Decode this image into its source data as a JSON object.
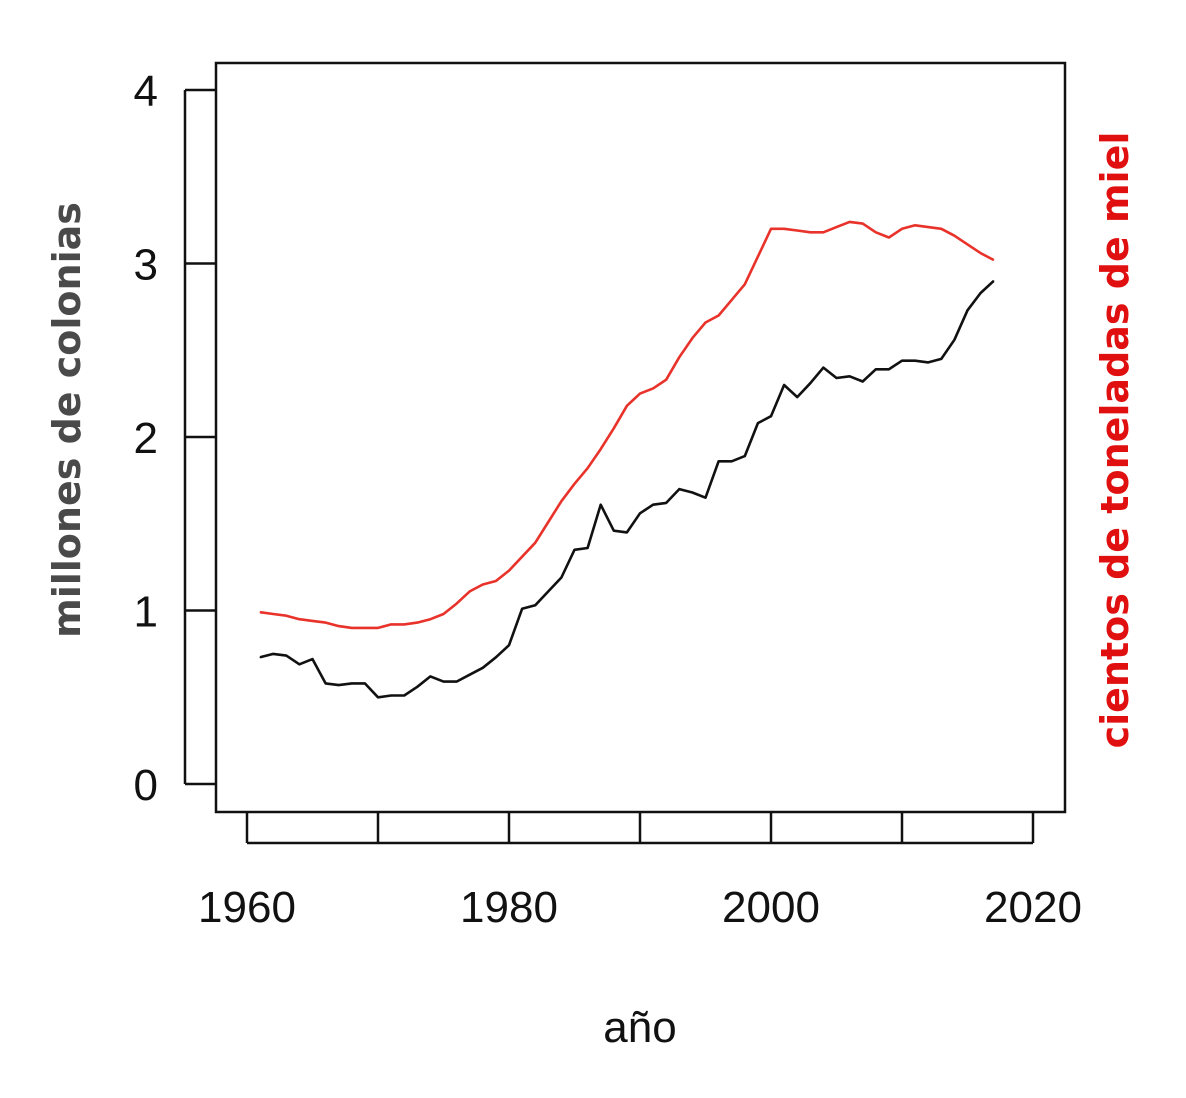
{
  "chart_data": {
    "type": "line",
    "title": "",
    "xlabel": "año",
    "ylabel_left": "millones de colonias",
    "ylabel_right": "cientos de toneladas de miel",
    "xlim": [
      1961,
      2017
    ],
    "ylim": [
      0,
      4
    ],
    "x_ticks": [
      1960,
      1980,
      2000,
      2020
    ],
    "y_ticks": [
      0,
      1,
      2,
      3,
      4
    ],
    "colors": {
      "colonias": "#111111",
      "miel": "#e8322a",
      "left_label": "#4a4a4a",
      "right_label": "#e01010"
    },
    "series": [
      {
        "name": "millones de colonias",
        "color": "#111111",
        "x": [
          1961,
          1962,
          1963,
          1964,
          1965,
          1966,
          1967,
          1968,
          1969,
          1970,
          1971,
          1972,
          1973,
          1974,
          1975,
          1976,
          1977,
          1978,
          1979,
          1980,
          1981,
          1982,
          1983,
          1984,
          1985,
          1986,
          1987,
          1988,
          1989,
          1990,
          1991,
          1992,
          1993,
          1994,
          1995,
          1996,
          1997,
          1998,
          1999,
          2000,
          2001,
          2002,
          2003,
          2004,
          2005,
          2006,
          2007,
          2008,
          2009,
          2010,
          2011,
          2012,
          2013,
          2014,
          2015,
          2016,
          2017
        ],
        "values": [
          0.73,
          0.75,
          0.74,
          0.69,
          0.72,
          0.58,
          0.57,
          0.58,
          0.58,
          0.5,
          0.51,
          0.51,
          0.56,
          0.62,
          0.59,
          0.59,
          0.63,
          0.67,
          0.73,
          0.8,
          1.01,
          1.03,
          1.11,
          1.19,
          1.35,
          1.36,
          1.61,
          1.46,
          1.45,
          1.56,
          1.61,
          1.62,
          1.7,
          1.68,
          1.65,
          1.86,
          1.86,
          1.89,
          2.08,
          2.12,
          2.3,
          2.23,
          2.31,
          2.4,
          2.34,
          2.35,
          2.32,
          2.39,
          2.39,
          2.44,
          2.44,
          2.43,
          2.45,
          2.56,
          2.73,
          2.83,
          2.9
        ]
      },
      {
        "name": "cientos de toneladas de miel",
        "color": "#e8322a",
        "x": [
          1961,
          1962,
          1963,
          1964,
          1965,
          1966,
          1967,
          1968,
          1969,
          1970,
          1971,
          1972,
          1973,
          1974,
          1975,
          1976,
          1977,
          1978,
          1979,
          1980,
          1981,
          1982,
          1983,
          1984,
          1985,
          1986,
          1987,
          1988,
          1989,
          1990,
          1991,
          1992,
          1993,
          1994,
          1995,
          1996,
          1997,
          1998,
          1999,
          2000,
          2001,
          2002,
          2003,
          2004,
          2005,
          2006,
          2007,
          2008,
          2009,
          2010,
          2011,
          2012,
          2013,
          2014,
          2015,
          2016,
          2017
        ],
        "values": [
          0.99,
          0.98,
          0.97,
          0.95,
          0.94,
          0.93,
          0.91,
          0.9,
          0.9,
          0.9,
          0.92,
          0.92,
          0.93,
          0.95,
          0.98,
          1.04,
          1.11,
          1.15,
          1.17,
          1.23,
          1.31,
          1.39,
          1.51,
          1.63,
          1.73,
          1.82,
          1.93,
          2.05,
          2.18,
          2.25,
          2.28,
          2.33,
          2.46,
          2.57,
          2.66,
          2.7,
          2.79,
          2.88,
          3.04,
          3.2,
          3.2,
          3.19,
          3.18,
          3.18,
          3.21,
          3.24,
          3.23,
          3.18,
          3.15,
          3.2,
          3.22,
          3.21,
          3.2,
          3.16,
          3.11,
          3.06,
          3.02
        ]
      }
    ]
  }
}
